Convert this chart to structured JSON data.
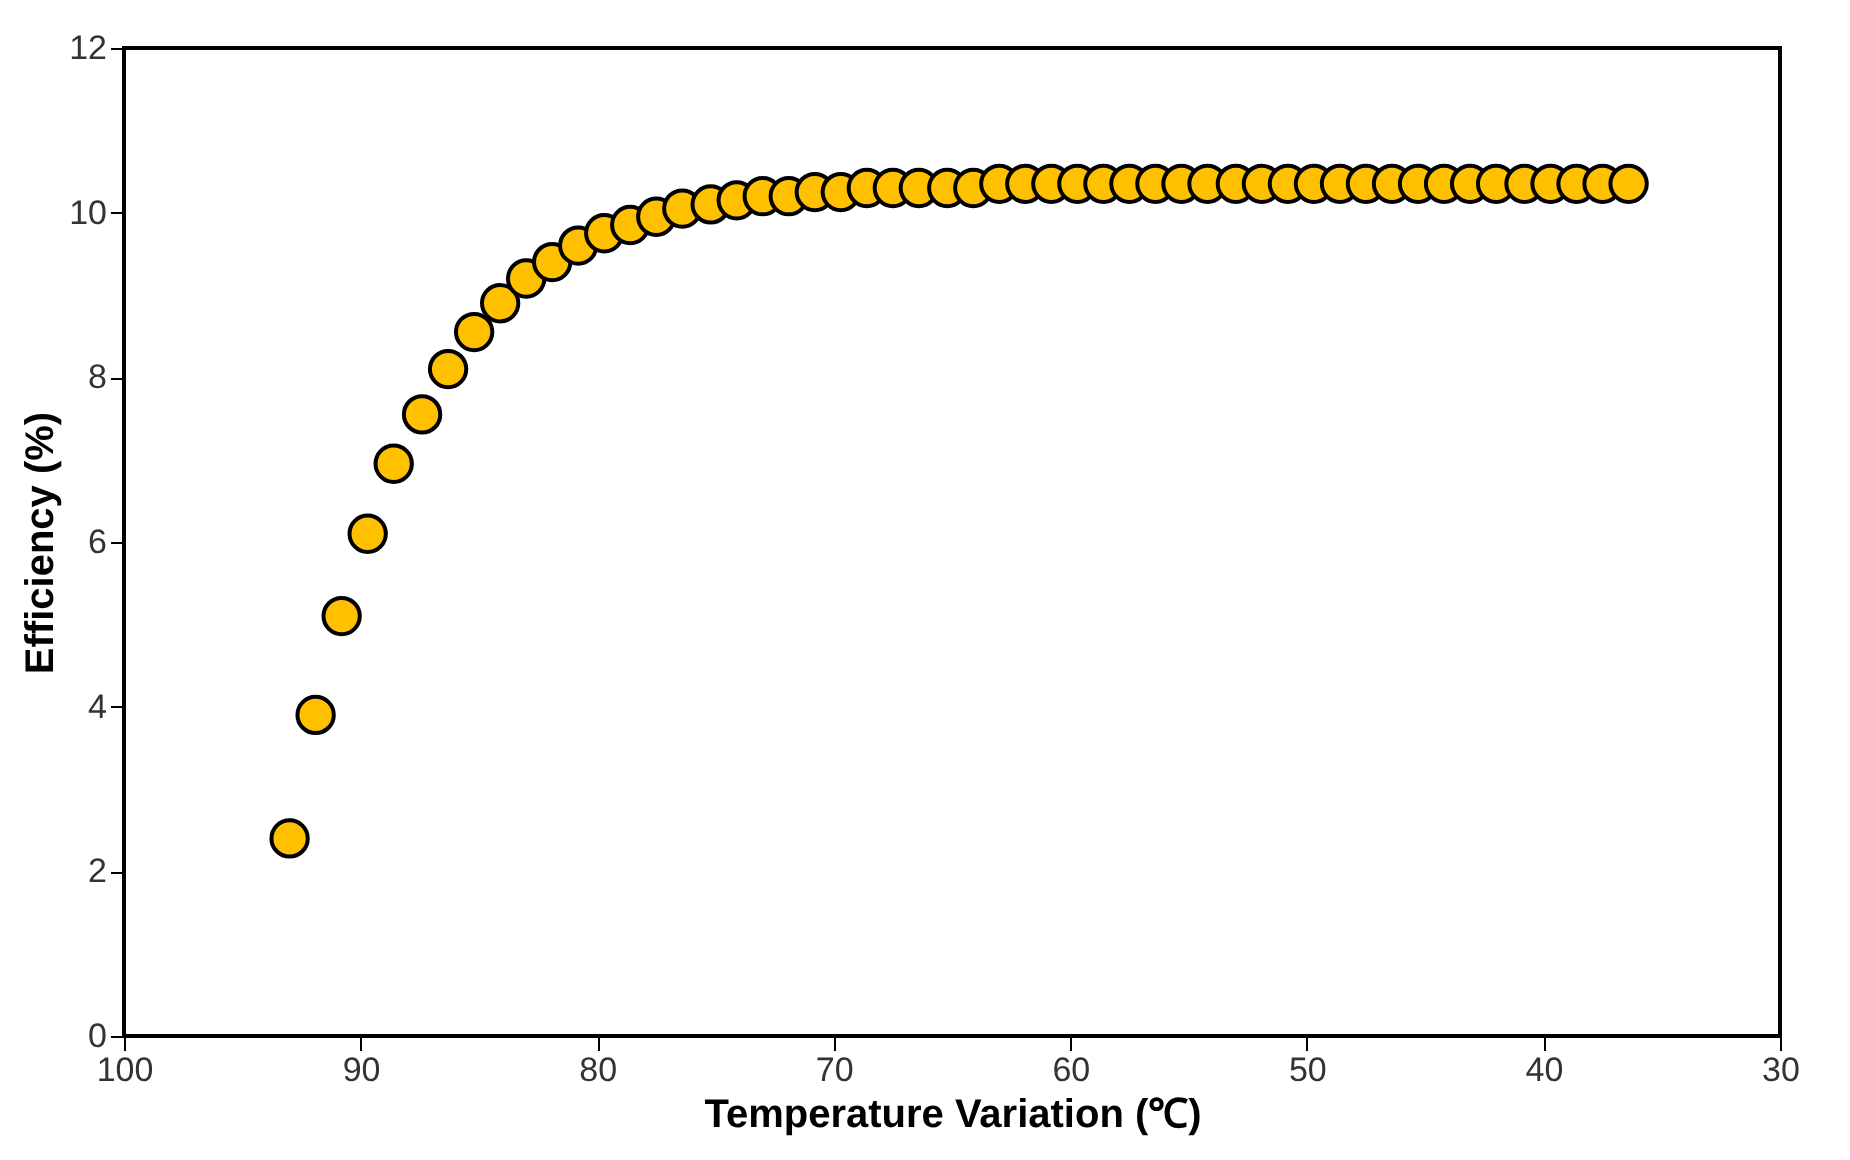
{
  "chart_data": {
    "type": "scatter",
    "xlabel": "Temperature Variation (℃)",
    "ylabel": "Efficiency (%)",
    "x": [
      93.0,
      91.9,
      90.8,
      89.7,
      88.6,
      87.4,
      86.3,
      85.2,
      84.1,
      83.0,
      81.9,
      80.8,
      79.7,
      78.6,
      77.5,
      76.4,
      75.2,
      74.1,
      73.0,
      71.9,
      70.8,
      69.7,
      68.6,
      67.5,
      66.4,
      65.2,
      64.1,
      63.0,
      61.9,
      60.8,
      59.7,
      58.6,
      57.5,
      56.4,
      55.3,
      54.2,
      53.0,
      51.9,
      50.8,
      49.7,
      48.6,
      47.5,
      46.4,
      45.3,
      44.2,
      43.1,
      42.0,
      40.8,
      39.7,
      38.6,
      37.5,
      36.4
    ],
    "series": [
      {
        "color": "#ffc000",
        "values": [
          2.4,
          3.9,
          5.1,
          6.1,
          6.95,
          7.55,
          8.1,
          8.55,
          8.9,
          9.2,
          9.4,
          9.6,
          9.75,
          9.85,
          9.95,
          10.05,
          10.1,
          10.15,
          10.2,
          10.2,
          10.25,
          10.25,
          10.3,
          10.3,
          10.3,
          10.3,
          10.3,
          10.35,
          10.35,
          10.35,
          10.35,
          10.35,
          10.35,
          10.35,
          10.35,
          10.35,
          10.35,
          10.35,
          10.35,
          10.35,
          10.35,
          10.35,
          10.35,
          10.35,
          10.35,
          10.35,
          10.35,
          10.35,
          10.35,
          10.35,
          10.35,
          10.35
        ]
      }
    ],
    "xlim": [
      100,
      30
    ],
    "xticks": [
      100,
      90,
      80,
      70,
      60,
      50,
      40,
      30
    ],
    "ylim": [
      0,
      12
    ],
    "yticks": [
      0,
      2,
      4,
      6,
      8,
      10,
      12
    ],
    "grid": false,
    "legend": false,
    "marker": "circle"
  }
}
